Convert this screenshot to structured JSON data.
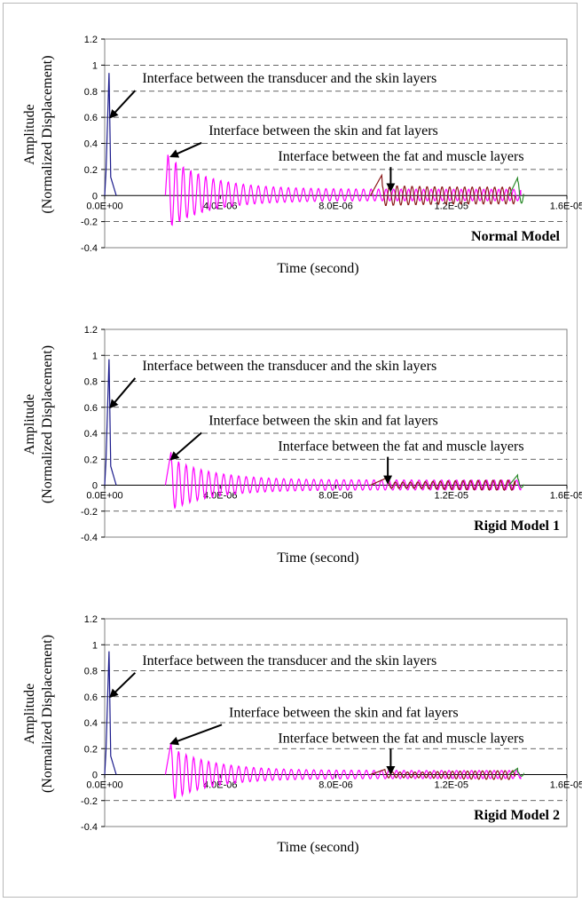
{
  "chart_data": [
    {
      "type": "line",
      "title": "Normal Model",
      "xlabel": "Time (second)",
      "ylabel_lines": [
        "Amplitude",
        "(Normalized Displacement)"
      ],
      "xlim": [
        0,
        1.6e-05
      ],
      "ylim": [
        -0.4,
        1.2
      ],
      "x_ticks": [
        0,
        4e-06,
        8e-06,
        1.2e-05,
        1.6e-05
      ],
      "x_tick_labels": [
        "0.0E+00",
        "4.0E-06",
        "8.0E-06",
        "1.2E-05",
        "1.6E-05"
      ],
      "y_ticks": [
        -0.4,
        -0.2,
        0,
        0.2,
        0.4,
        0.6,
        0.8,
        1,
        1.2
      ],
      "y_tick_labels": [
        "-0.4",
        "-0.2",
        "0",
        "0.2",
        "0.4",
        "0.6",
        "0.8",
        "1",
        "1.2"
      ],
      "grid": "horizontal-dashed",
      "series": [
        {
          "color": "#1a1a8c",
          "peak_x": 1.5e-07,
          "peak": 0.94,
          "end_x": 4e-07
        },
        {
          "color": "#ff00ff",
          "start_x": 2.1e-06,
          "peak_x": 2.2e-06,
          "peak": 0.36,
          "trough": -0.3,
          "end_x": 1.44e-05,
          "ripple": 0.06
        },
        {
          "color": "#8b1a1a",
          "start_x": 9.2e-06,
          "peak_x": 9.6e-06,
          "peak": 0.16,
          "trough": -0.16,
          "end_x": 1.42e-05,
          "ripple": 0.08
        },
        {
          "color": "#2e8b2e",
          "start_x": 1.4e-05,
          "peak_x": 1.43e-05,
          "peak": 0.14,
          "trough": -0.08,
          "end_x": 1.45e-05
        }
      ],
      "annotations": [
        {
          "text": "Interface between the transducer and the skin layers",
          "x": 1.3e-06,
          "y": 0.9,
          "arrow_to": [
            2e-07,
            0.6
          ]
        },
        {
          "text": "Interface between the skin and fat layers",
          "x": 3.6e-06,
          "y": 0.5,
          "arrow_to": [
            2.3e-06,
            0.3
          ]
        },
        {
          "text": "Interface between the fat and muscle layers",
          "x": 6e-06,
          "y": 0.3,
          "arrow_to": [
            9.9e-06,
            0.04
          ]
        }
      ]
    },
    {
      "type": "line",
      "title": "Rigid Model 1",
      "xlabel": "Time (second)",
      "ylabel_lines": [
        "Amplitude",
        "(Normalized Displacement)"
      ],
      "xlim": [
        0,
        1.6e-05
      ],
      "ylim": [
        -0.4,
        1.2
      ],
      "x_ticks": [
        0,
        4e-06,
        8e-06,
        1.2e-05,
        1.6e-05
      ],
      "x_tick_labels": [
        "0.0E+00",
        "4.0E-06",
        "8.0E-06",
        "1.2E-05",
        "1.6E-05"
      ],
      "y_ticks": [
        -0.4,
        -0.2,
        0,
        0.2,
        0.4,
        0.6,
        0.8,
        1,
        1.2
      ],
      "y_tick_labels": [
        "-0.4",
        "-0.2",
        "0",
        "0.2",
        "0.4",
        "0.6",
        "0.8",
        "1",
        "1.2"
      ],
      "grid": "horizontal-dashed",
      "series": [
        {
          "color": "#1a1a8c",
          "peak_x": 1.5e-07,
          "peak": 0.97,
          "end_x": 4e-07
        },
        {
          "color": "#ff00ff",
          "start_x": 2.1e-06,
          "peak_x": 2.3e-06,
          "peak": 0.26,
          "trough": -0.24,
          "end_x": 1.44e-05,
          "ripple": 0.05
        },
        {
          "color": "#8b1a1a",
          "start_x": 9.2e-06,
          "peak_x": 9.8e-06,
          "peak": 0.06,
          "trough": -0.06,
          "end_x": 1.42e-05,
          "ripple": 0.05
        },
        {
          "color": "#2e8b2e",
          "start_x": 1.4e-05,
          "peak_x": 1.43e-05,
          "peak": 0.08,
          "trough": -0.03,
          "end_x": 1.45e-05
        }
      ],
      "annotations": [
        {
          "text": "Interface between the transducer and the skin layers",
          "x": 1.3e-06,
          "y": 0.92,
          "arrow_to": [
            2e-07,
            0.6
          ]
        },
        {
          "text": "Interface between the skin and fat layers",
          "x": 3.6e-06,
          "y": 0.5,
          "arrow_to": [
            2.3e-06,
            0.2
          ]
        },
        {
          "text": "Interface between the fat and muscle layers",
          "x": 6e-06,
          "y": 0.3,
          "arrow_to": [
            9.8e-06,
            0.02
          ]
        }
      ]
    },
    {
      "type": "line",
      "title": "Rigid Model 2",
      "xlabel": "Time (second)",
      "ylabel_lines": [
        "Amplitude",
        "(Normalized Displacement)"
      ],
      "xlim": [
        0,
        1.6e-05
      ],
      "ylim": [
        -0.4,
        1.2
      ],
      "x_ticks": [
        0,
        4e-06,
        8e-06,
        1.2e-05,
        1.6e-05
      ],
      "x_tick_labels": [
        "0.0E+00",
        "4.0E-06",
        "8.0E-06",
        "1.2E-05",
        "1.6E-05"
      ],
      "y_ticks": [
        -0.4,
        -0.2,
        0,
        0.2,
        0.4,
        0.6,
        0.8,
        1,
        1.2
      ],
      "y_tick_labels": [
        "-0.4",
        "-0.2",
        "0",
        "0.2",
        "0.4",
        "0.6",
        "0.8",
        "1",
        "1.2"
      ],
      "grid": "horizontal-dashed",
      "series": [
        {
          "color": "#1a1a8c",
          "peak_x": 1.5e-07,
          "peak": 0.95,
          "end_x": 4e-07
        },
        {
          "color": "#ff00ff",
          "start_x": 2.1e-06,
          "peak_x": 2.3e-06,
          "peak": 0.25,
          "trough": -0.24,
          "end_x": 1.44e-05,
          "ripple": 0.04
        },
        {
          "color": "#8b1a1a",
          "start_x": 9.2e-06,
          "peak_x": 9.7e-06,
          "peak": 0.04,
          "trough": -0.05,
          "end_x": 1.42e-05,
          "ripple": 0.04
        },
        {
          "color": "#2e8b2e",
          "start_x": 1.4e-05,
          "peak_x": 1.43e-05,
          "peak": 0.05,
          "trough": -0.03,
          "end_x": 1.45e-05
        }
      ],
      "annotations": [
        {
          "text": "Interface between the transducer and the skin layers",
          "x": 1.3e-06,
          "y": 0.88,
          "arrow_to": [
            2e-07,
            0.6
          ]
        },
        {
          "text": "Interface between the skin and fat layers",
          "x": 4.3e-06,
          "y": 0.48,
          "arrow_to": [
            2.3e-06,
            0.24
          ]
        },
        {
          "text": "Interface between the fat and muscle layers",
          "x": 6e-06,
          "y": 0.28,
          "arrow_to": [
            9.9e-06,
            0.01
          ]
        }
      ]
    }
  ]
}
